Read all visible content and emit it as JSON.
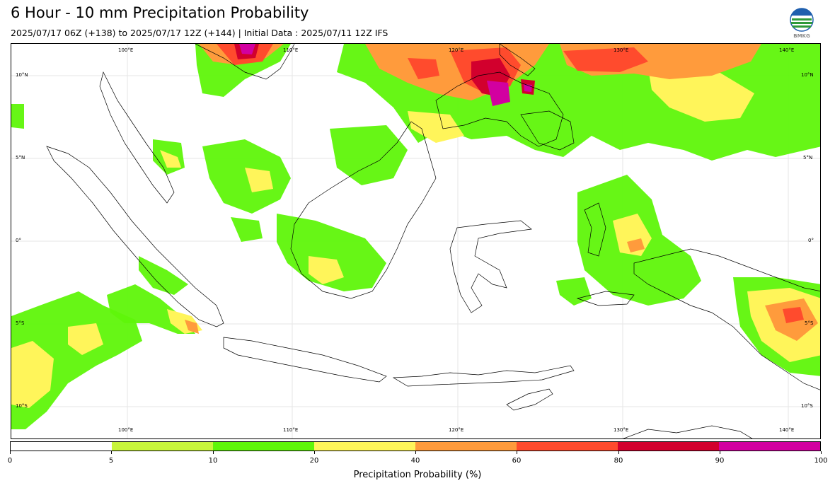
{
  "header": {
    "title": "6 Hour - 10 mm Precipitation Probability",
    "subtitle": "2025/07/17 06Z (+138) to 2025/07/17 12Z (+144) | Initial Data : 2025/07/11 12Z IFS",
    "logo_text": "BMKG"
  },
  "map": {
    "lon_ticks": [
      {
        "label": "100°E"
      },
      {
        "label": "110°E"
      },
      {
        "label": "120°E"
      },
      {
        "label": "130°E"
      },
      {
        "label": "140°E"
      }
    ],
    "lat_ticks": [
      {
        "label": "10°N"
      },
      {
        "label": "5°N"
      },
      {
        "label": "0°"
      },
      {
        "label": "5°S"
      },
      {
        "label": "10°S"
      }
    ],
    "grid": true
  },
  "colorbar": {
    "label": "Precipitation Probability (%)",
    "ticks": [
      "0",
      "5",
      "10",
      "20",
      "40",
      "60",
      "80",
      "90",
      "100"
    ],
    "bins": [
      {
        "from": 0,
        "to": 5,
        "color": "#ffffff"
      },
      {
        "from": 5,
        "to": 10,
        "color": "#c8f53c"
      },
      {
        "from": 10,
        "to": 20,
        "color": "#5ff50a"
      },
      {
        "from": 20,
        "to": 40,
        "color": "#fff55a"
      },
      {
        "from": 40,
        "to": 60,
        "color": "#ff9b3c"
      },
      {
        "from": 60,
        "to": 80,
        "color": "#ff4b2d"
      },
      {
        "from": 80,
        "to": 90,
        "color": "#d2002d"
      },
      {
        "from": 90,
        "to": 100,
        "color": "#d200a0"
      }
    ]
  }
}
